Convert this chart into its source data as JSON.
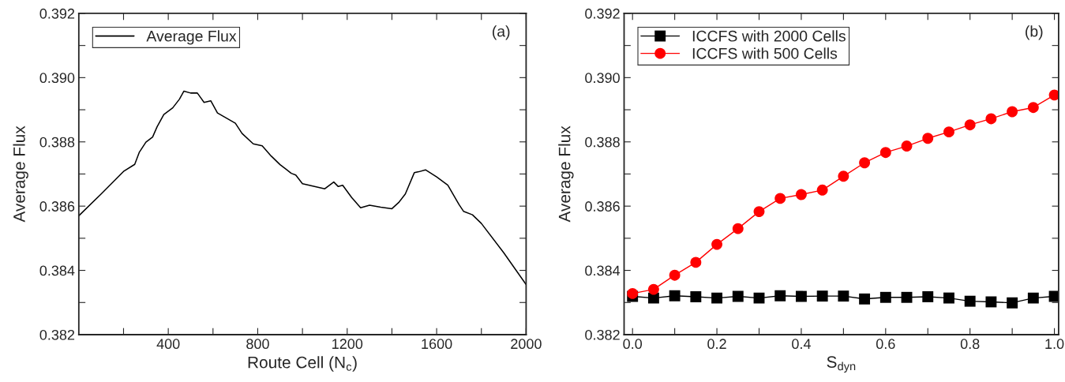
{
  "chart_data": [
    {
      "type": "line",
      "xlabel": "Route Cell (N$_{c}$)",
      "ylabel": "Average Flux",
      "annotations": [
        "(a)"
      ],
      "xlim": [
        0,
        2000
      ],
      "ylim": [
        0.382,
        0.392
      ],
      "xticks": [
        {
          "value": 200,
          "label": null
        },
        400,
        {
          "value": 600,
          "label": null
        },
        800,
        {
          "value": 1000,
          "label": null
        },
        1200,
        {
          "value": 1400,
          "label": null
        },
        1600,
        {
          "value": 1800,
          "label": null
        },
        2000
      ],
      "yticks": [
        0.382,
        {
          "value": 0.383,
          "label": null
        },
        0.384,
        {
          "value": 0.385,
          "label": null
        },
        0.386,
        {
          "value": 0.387,
          "label": null
        },
        0.388,
        {
          "value": 0.389,
          "label": null
        },
        {
          "value": 0.39,
          "label": "0.390"
        },
        {
          "value": 0.391,
          "label": null
        },
        0.392
      ],
      "legend": "top left",
      "grid": false,
      "marker": "none",
      "series": [
        {
          "name": "Average Flux",
          "color": "#000000",
          "x": [
            0,
            100,
            200,
            250,
            270,
            300,
            330,
            350,
            380,
            420,
            450,
            470,
            500,
            530,
            560,
            590,
            620,
            660,
            700,
            730,
            780,
            820,
            860,
            900,
            930,
            950,
            970,
            1000,
            1100,
            1140,
            1160,
            1180,
            1220,
            1260,
            1300,
            1350,
            1400,
            1430,
            1460,
            1500,
            1520,
            1550,
            1600,
            1650,
            1700,
            1720,
            1760,
            1800,
            1900,
            2000
          ],
          "values": [
            0.3857,
            0.38638,
            0.38708,
            0.3873,
            0.38767,
            0.38799,
            0.38815,
            0.38847,
            0.38885,
            0.38906,
            0.38933,
            0.38958,
            0.38952,
            0.38952,
            0.38923,
            0.38928,
            0.3889,
            0.38874,
            0.38858,
            0.38826,
            0.38794,
            0.38788,
            0.38756,
            0.38729,
            0.38713,
            0.38702,
            0.38697,
            0.3867,
            0.38654,
            0.38675,
            0.38661,
            0.38665,
            0.38627,
            0.38595,
            0.38603,
            0.38597,
            0.38592,
            0.38611,
            0.38638,
            0.38704,
            0.38707,
            0.38713,
            0.38691,
            0.38665,
            0.38605,
            0.38584,
            0.38573,
            0.38546,
            0.38455,
            0.38356
          ]
        }
      ]
    },
    {
      "type": "line",
      "xlabel": "S$_{dyn}$",
      "ylabel": "Average Flux",
      "annotations": [
        "(b)"
      ],
      "xlim": [
        -0.02,
        1.01
      ],
      "ylim": [
        0.382,
        0.392
      ],
      "xticks": [
        {
          "value": 0,
          "label": "0.0"
        },
        {
          "value": 0.1,
          "label": null
        },
        0.2,
        {
          "value": 0.3,
          "label": null
        },
        0.4,
        {
          "value": 0.5,
          "label": null
        },
        0.6,
        {
          "value": 0.7,
          "label": null
        },
        0.8,
        {
          "value": 0.9,
          "label": null
        },
        {
          "value": 1,
          "label": "1.0"
        }
      ],
      "yticks": [
        0.382,
        {
          "value": 0.383,
          "label": null
        },
        0.384,
        {
          "value": 0.385,
          "label": null
        },
        0.386,
        {
          "value": 0.387,
          "label": null
        },
        0.388,
        {
          "value": 0.389,
          "label": null
        },
        {
          "value": 0.39,
          "label": "0.390"
        },
        {
          "value": 0.391,
          "label": null
        },
        0.392
      ],
      "legend": "top left",
      "grid": false,
      "x": [
        0.0,
        0.05,
        0.1,
        0.15,
        0.2,
        0.25,
        0.3,
        0.35,
        0.4,
        0.45,
        0.5,
        0.55,
        0.6,
        0.65,
        0.7,
        0.75,
        0.8,
        0.85,
        0.9,
        0.95,
        1.0
      ],
      "series": [
        {
          "name": "ICCFS with 2000 Cells",
          "color": "#000000",
          "marker": "square",
          "values": [
            0.38319,
            0.38314,
            0.38321,
            0.38318,
            0.38314,
            0.38319,
            0.38314,
            0.38321,
            0.38319,
            0.3832,
            0.3832,
            0.38311,
            0.38316,
            0.38316,
            0.38318,
            0.38314,
            0.38304,
            0.38302,
            0.38299,
            0.38314,
            0.38319
          ]
        },
        {
          "name": "ICCFS with 500 Cells",
          "color": "#ff0000",
          "marker": "circle",
          "values": [
            0.38328,
            0.38341,
            0.38385,
            0.38425,
            0.38481,
            0.3853,
            0.38583,
            0.38624,
            0.38636,
            0.3865,
            0.38693,
            0.38735,
            0.38767,
            0.38787,
            0.38811,
            0.38831,
            0.38853,
            0.38872,
            0.38894,
            0.38907,
            0.38946
          ]
        }
      ]
    }
  ]
}
